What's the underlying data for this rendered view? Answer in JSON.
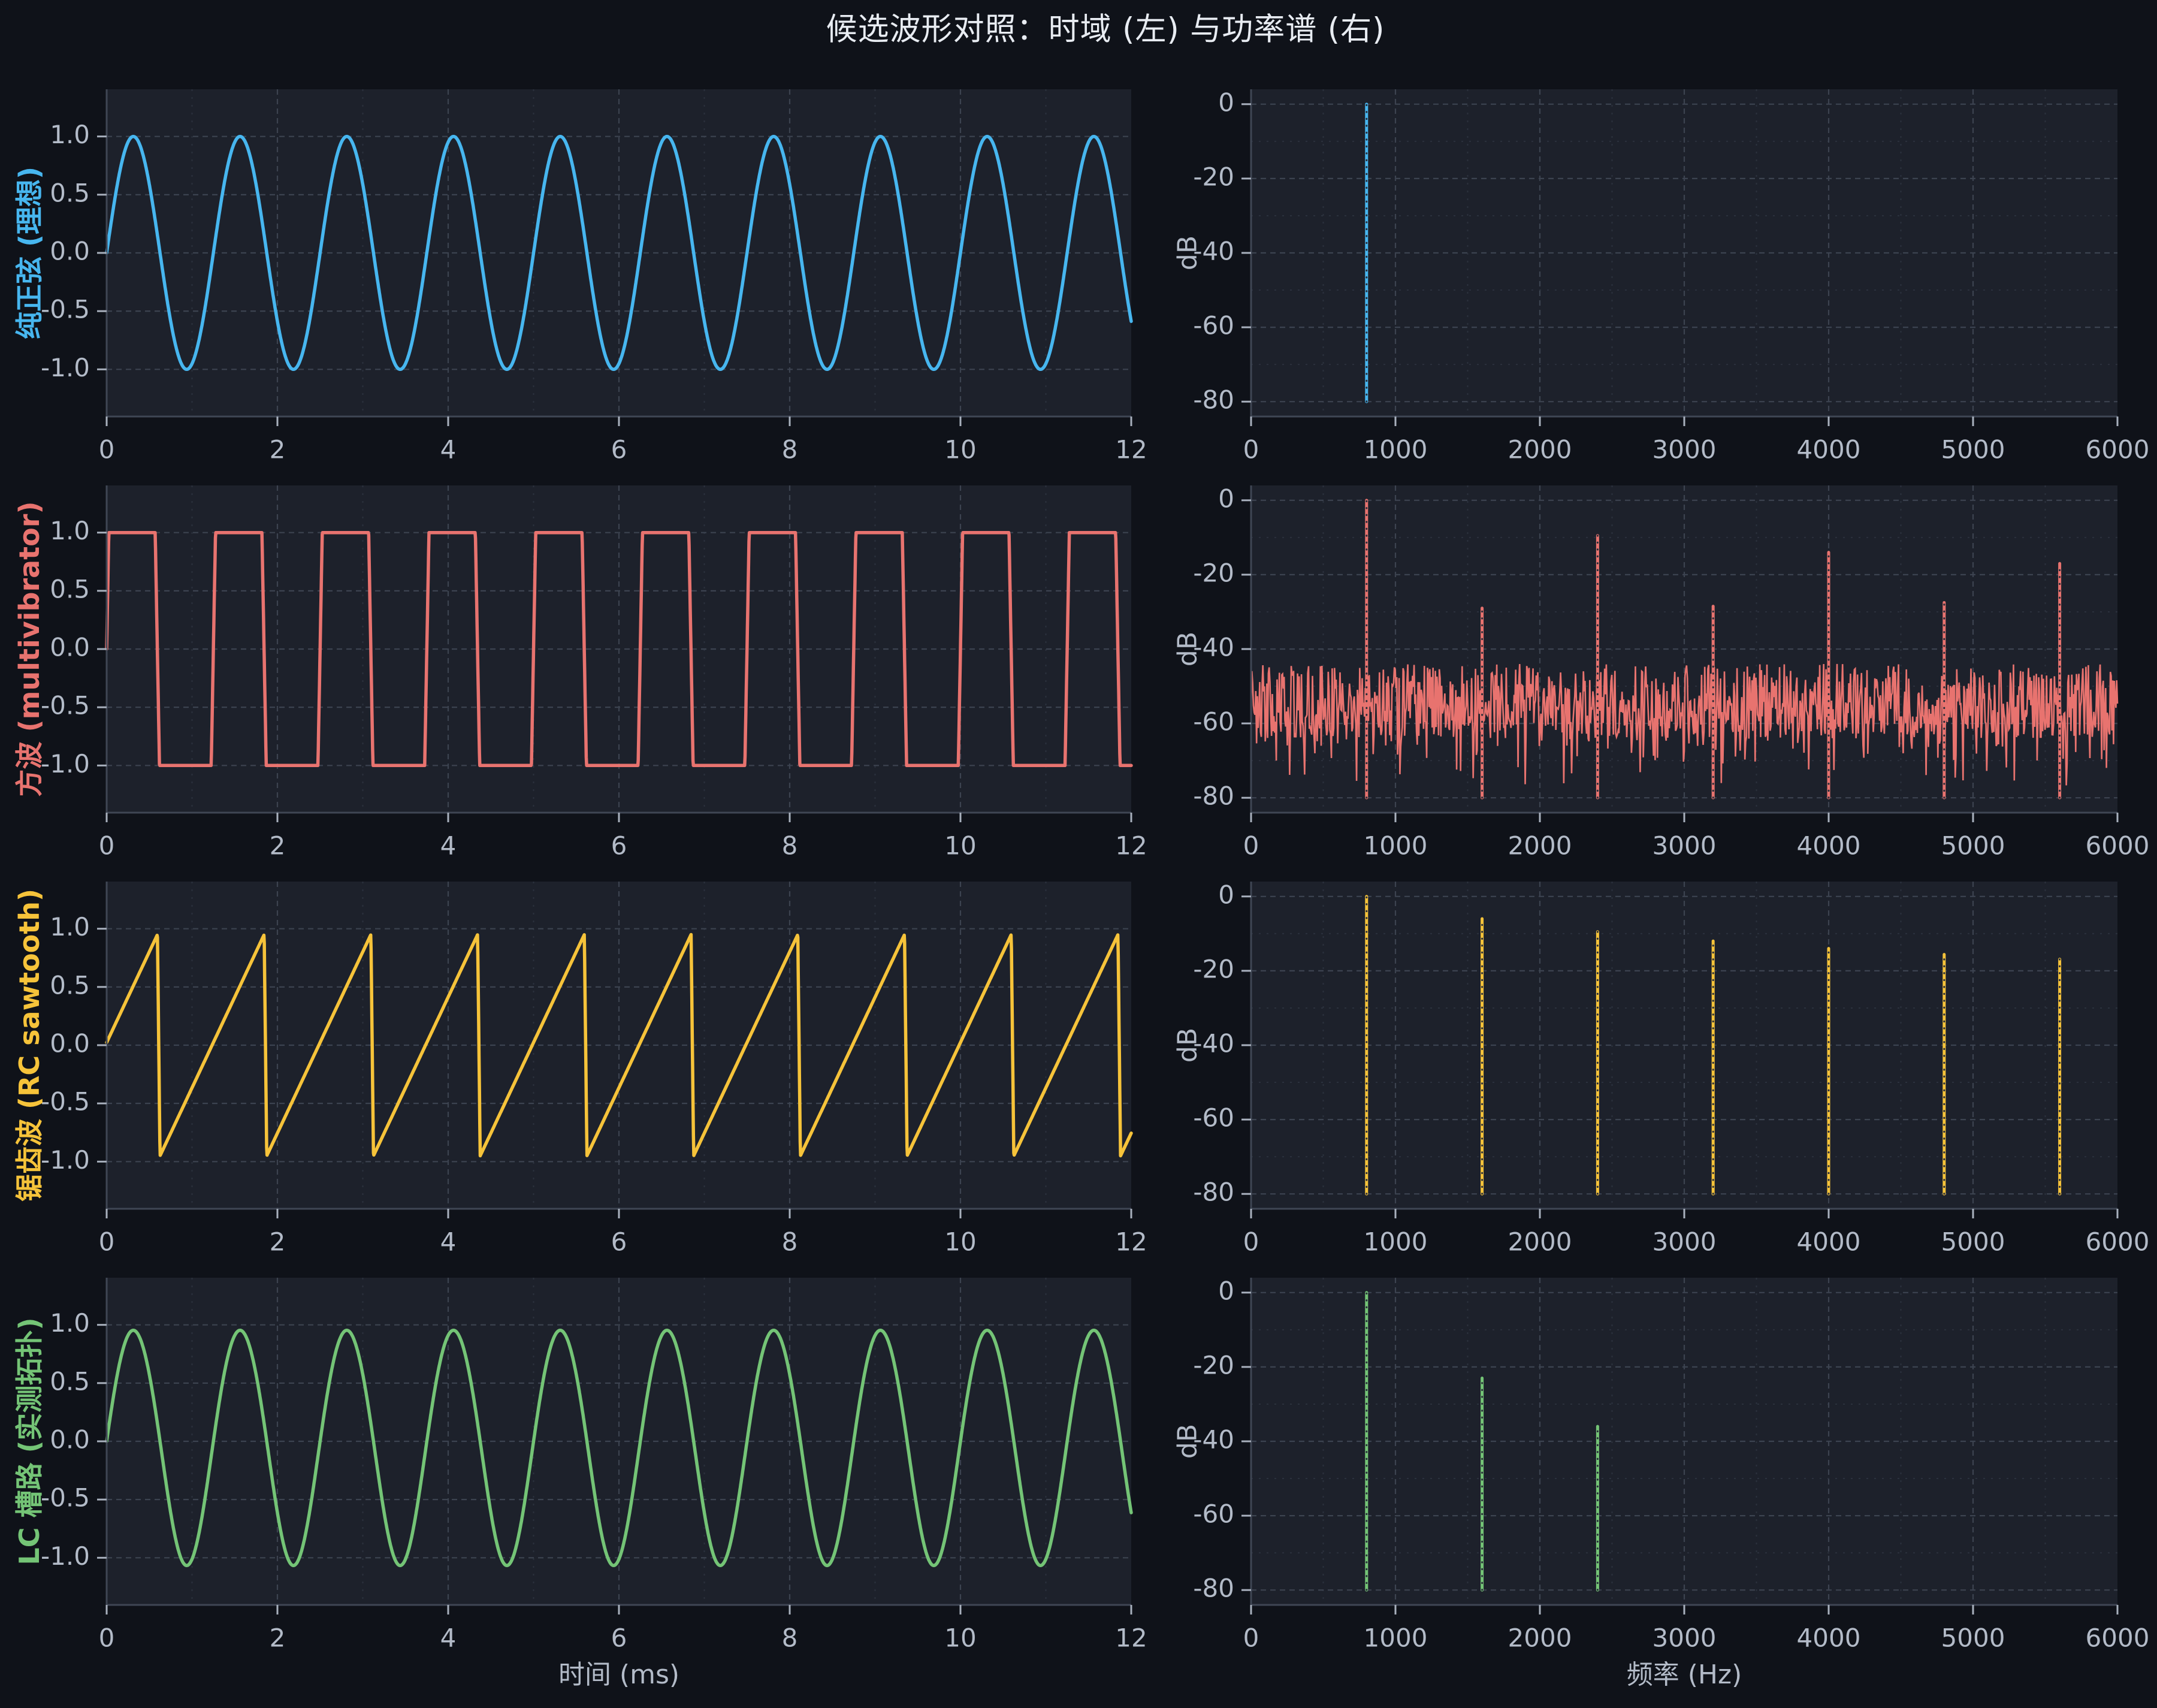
{
  "title": "候选波形对照：时域 (左) 与功率谱 (右)",
  "style": {
    "page_bg": "#0f1219",
    "plot_bg": "#1d212b",
    "grid_major": "#3c4350",
    "grid_minor": "#2b313d",
    "spine": "#3f4654",
    "tick_mark": "#a9b1be",
    "tick_label": "#b3bbc8",
    "title_color": "#e8ecf2",
    "spike_dot_overlay": "#272c38"
  },
  "axes": {
    "time": {
      "xlabel": "时间 (ms)",
      "xlim_ms": [
        0,
        12
      ],
      "xticks": [
        0,
        2,
        4,
        6,
        8,
        10,
        12
      ],
      "xminor_step_ms": 1,
      "yticks": [
        1.0,
        0.5,
        0.0,
        -0.5,
        -1.0
      ],
      "ytick_labels": [
        "1.0",
        "0.5",
        "0.0",
        "-0.5",
        "-1.0"
      ],
      "ylim": [
        -1.405,
        1.405
      ]
    },
    "freq": {
      "xlabel": "频率 (Hz)",
      "ylabel": "dB",
      "xlim_hz": [
        0,
        6000
      ],
      "xticks": [
        0,
        1000,
        2000,
        3000,
        4000,
        5000,
        6000
      ],
      "xminor_step_hz": 500,
      "yticks": [
        0,
        -20,
        -40,
        -60,
        -80
      ],
      "yminor_step_db": 10,
      "ylim_db": [
        -84,
        4
      ],
      "spike_base_db": -80
    }
  },
  "chart_data": [
    {
      "type": "line",
      "row_label": "纯正弦 (理想)",
      "color": "#47b6ef",
      "time_domain": {
        "waveform": "sine",
        "freq_hz": 800,
        "amplitude": 1.0,
        "duration_ms": 12
      },
      "spectrum": {
        "spikes": [
          {
            "freq_hz": 800,
            "db": 0
          }
        ],
        "noise": null
      }
    },
    {
      "type": "line",
      "row_label": "方波 (multivibrator)",
      "color": "#e8736f",
      "time_domain": {
        "waveform": "square",
        "freq_hz": 800,
        "amplitude": 1.0,
        "duty": 0.475,
        "edge_ms": 0.05,
        "duration_ms": 12
      },
      "spectrum": {
        "spikes": [
          {
            "freq_hz": 800,
            "db": 0
          },
          {
            "freq_hz": 1600,
            "db": -29
          },
          {
            "freq_hz": 2400,
            "db": -9.5
          },
          {
            "freq_hz": 3200,
            "db": -28.5
          },
          {
            "freq_hz": 4000,
            "db": -14
          },
          {
            "freq_hz": 4800,
            "db": -27.5
          },
          {
            "freq_hz": 5600,
            "db": -17
          }
        ],
        "noise": {
          "seed": 13,
          "points": 1100,
          "core_top_db": -44,
          "core_span_db": 20,
          "dip_prob": 0.3,
          "dip_extra_db": 14,
          "floor_db": -80,
          "ceil_db": -42
        }
      }
    },
    {
      "type": "line",
      "row_label": "锯齿波 (RC sawtooth)",
      "color": "#f6c33a",
      "time_domain": {
        "waveform": "sawtooth",
        "freq_hz": 800,
        "amplitude": 0.95,
        "drop_ms": 0.03,
        "duration_ms": 12
      },
      "spectrum": {
        "spikes": [
          {
            "freq_hz": 800,
            "db": 0
          },
          {
            "freq_hz": 1600,
            "db": -6
          },
          {
            "freq_hz": 2400,
            "db": -9.5
          },
          {
            "freq_hz": 3200,
            "db": -12
          },
          {
            "freq_hz": 4000,
            "db": -14
          },
          {
            "freq_hz": 4800,
            "db": -15.6
          },
          {
            "freq_hz": 5600,
            "db": -16.9
          }
        ],
        "noise": null
      }
    },
    {
      "type": "line",
      "row_label": "LC 槽路 (实测拓扑)",
      "color": "#74c476",
      "time_domain": {
        "waveform": "distorted_sine",
        "freq_hz": 800,
        "amplitude": 1.01,
        "second_harmonic": 0.028,
        "duration_ms": 12
      },
      "spectrum": {
        "spikes": [
          {
            "freq_hz": 800,
            "db": 0
          },
          {
            "freq_hz": 1600,
            "db": -23
          },
          {
            "freq_hz": 2400,
            "db": -36
          }
        ],
        "noise": null
      }
    }
  ]
}
